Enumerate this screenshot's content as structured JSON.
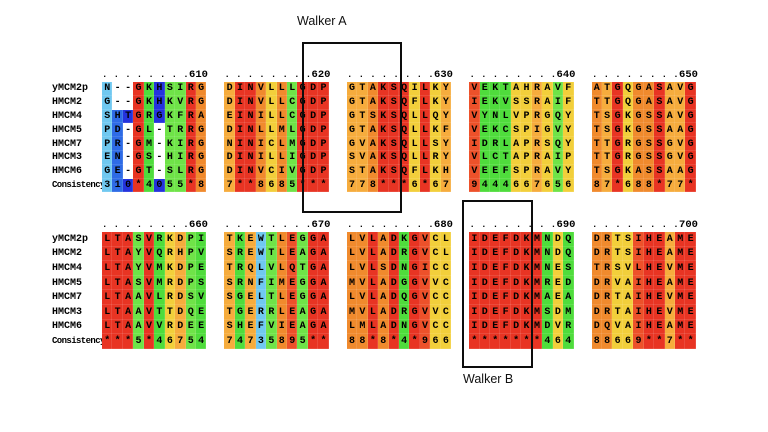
{
  "annotations": {
    "walker_a": "Walker A",
    "walker_b": "Walker B"
  },
  "color_map": {
    "*": "#e83423",
    "9": "#ed512a",
    "8": "#f08a2d",
    "7": "#f6ac3d",
    "6": "#f2cf3b",
    "5": "#6fe348",
    "4": "#4fdc3c",
    "3": "#70c8f0",
    "2": "#4aa3e8",
    "1": "#2e6be6",
    "0": "#2433dd",
    "gap": "#ffffff"
  },
  "blocks": [
    {
      "id": "top",
      "ruler": {
        "dots": ". . . . . . . .",
        "numbers": [
          "610",
          "620",
          "630",
          "640",
          "650"
        ]
      },
      "rows": [
        {
          "label": "yMCM2p",
          "chunks": [
            "N--GKHSIRG",
            "DINVLLLGDP",
            "GTAKSQILKY",
            "VEKTAHRAVF",
            "ATGQGASAVG"
          ]
        },
        {
          "label": "HMCM2",
          "chunks": [
            "G--GKHKVRG",
            "DINVLLCGDP",
            "GTAKSQFLKY",
            "IEKVSSRAIF",
            "TTGQGASAVG"
          ]
        },
        {
          "label": "HMCM4",
          "chunks": [
            "SHTGRGKFRA",
            "EINILLCGDP",
            "GTSKSQLLQY",
            "VYNLVPRGQY",
            "TSGKGSSAVG"
          ]
        },
        {
          "label": "HMCM5",
          "chunks": [
            "PD-GL-TRRG",
            "DINLLMLGDP",
            "GTAKSQLLKF",
            "VEKCSPIGVY",
            "TSGKGSSAAG"
          ]
        },
        {
          "label": "HMCM7",
          "chunks": [
            "PR-GM-KIRG",
            "NINICLMGDP",
            "GVAKSQLLSY",
            "IDRLAPRSQY",
            "TTGRGSSGVG"
          ]
        },
        {
          "label": "HMCM3",
          "chunks": [
            "EN-GS-HIRG",
            "DINILLIGDP",
            "SVAKSQLLRY",
            "VLCTAPRAIP",
            "TTGRGSSGVG"
          ]
        },
        {
          "label": "HMCM6",
          "chunks": [
            "GE-GT-SLRG",
            "DINVCIVGDP",
            "STAKSQFLKH",
            "VEEFSPRAVY",
            "TSGKASSAAG"
          ]
        },
        {
          "label": "Consistency",
          "chunks": [
            "310*4055*8",
            "7**8685***",
            "778***6*67",
            "9444667656",
            "87*688*77*"
          ],
          "consistency": true
        }
      ]
    },
    {
      "id": "bottom",
      "ruler": {
        "dots": ". . . . . . . .",
        "numbers": [
          "660",
          "670",
          "680",
          "690",
          "700"
        ]
      },
      "rows": [
        {
          "label": "yMCM2p",
          "chunks": [
            "LTASVRKDPI",
            "TKEWTLEGGA",
            "LVLADKGVCL",
            "IDEFDKMNDQ",
            "DRTSIHEAME"
          ]
        },
        {
          "label": "HMCM2",
          "chunks": [
            "LTAYVQRHPV",
            "SREWTLEAGA",
            "LVLADRGVCL",
            "IDEFDKMNDQ",
            "DRTSIHEAME"
          ]
        },
        {
          "label": "HMCM4",
          "chunks": [
            "LTAYVMKDPE",
            "TRQLVLQTGA",
            "LVLSDNGICC",
            "IDEFDKMNES",
            "TRSVLHEVME"
          ]
        },
        {
          "label": "HMCM5",
          "chunks": [
            "LTASVMRDPS",
            "SRNFIMEGGA",
            "MVLADGGVVC",
            "IDEFDKMRED",
            "DRVAIHEAME"
          ]
        },
        {
          "label": "HMCM7",
          "chunks": [
            "LTAAVLRDSV",
            "SGELTLEGGA",
            "LVLADQGVCC",
            "IDEFDKMAEA",
            "DRTAIHEVME"
          ]
        },
        {
          "label": "HMCM3",
          "chunks": [
            "LTAAVTTDQE",
            "TGERRLEAGA",
            "MVLADRGVVC",
            "IDEFDKMSDM",
            "DRTAIHEVME"
          ]
        },
        {
          "label": "HMCM6",
          "chunks": [
            "LTAAVVRDEE",
            "SHEFVIEAGA",
            "LMLADNGVCC",
            "IDEFDKMDVR",
            "DQVAIHEAME"
          ]
        },
        {
          "label": "Consistency",
          "chunks": [
            "***5*46754",
            "74735895**",
            "88*8*4*966",
            "*******464",
            "88669**7**"
          ],
          "consistency": true
        }
      ]
    }
  ]
}
